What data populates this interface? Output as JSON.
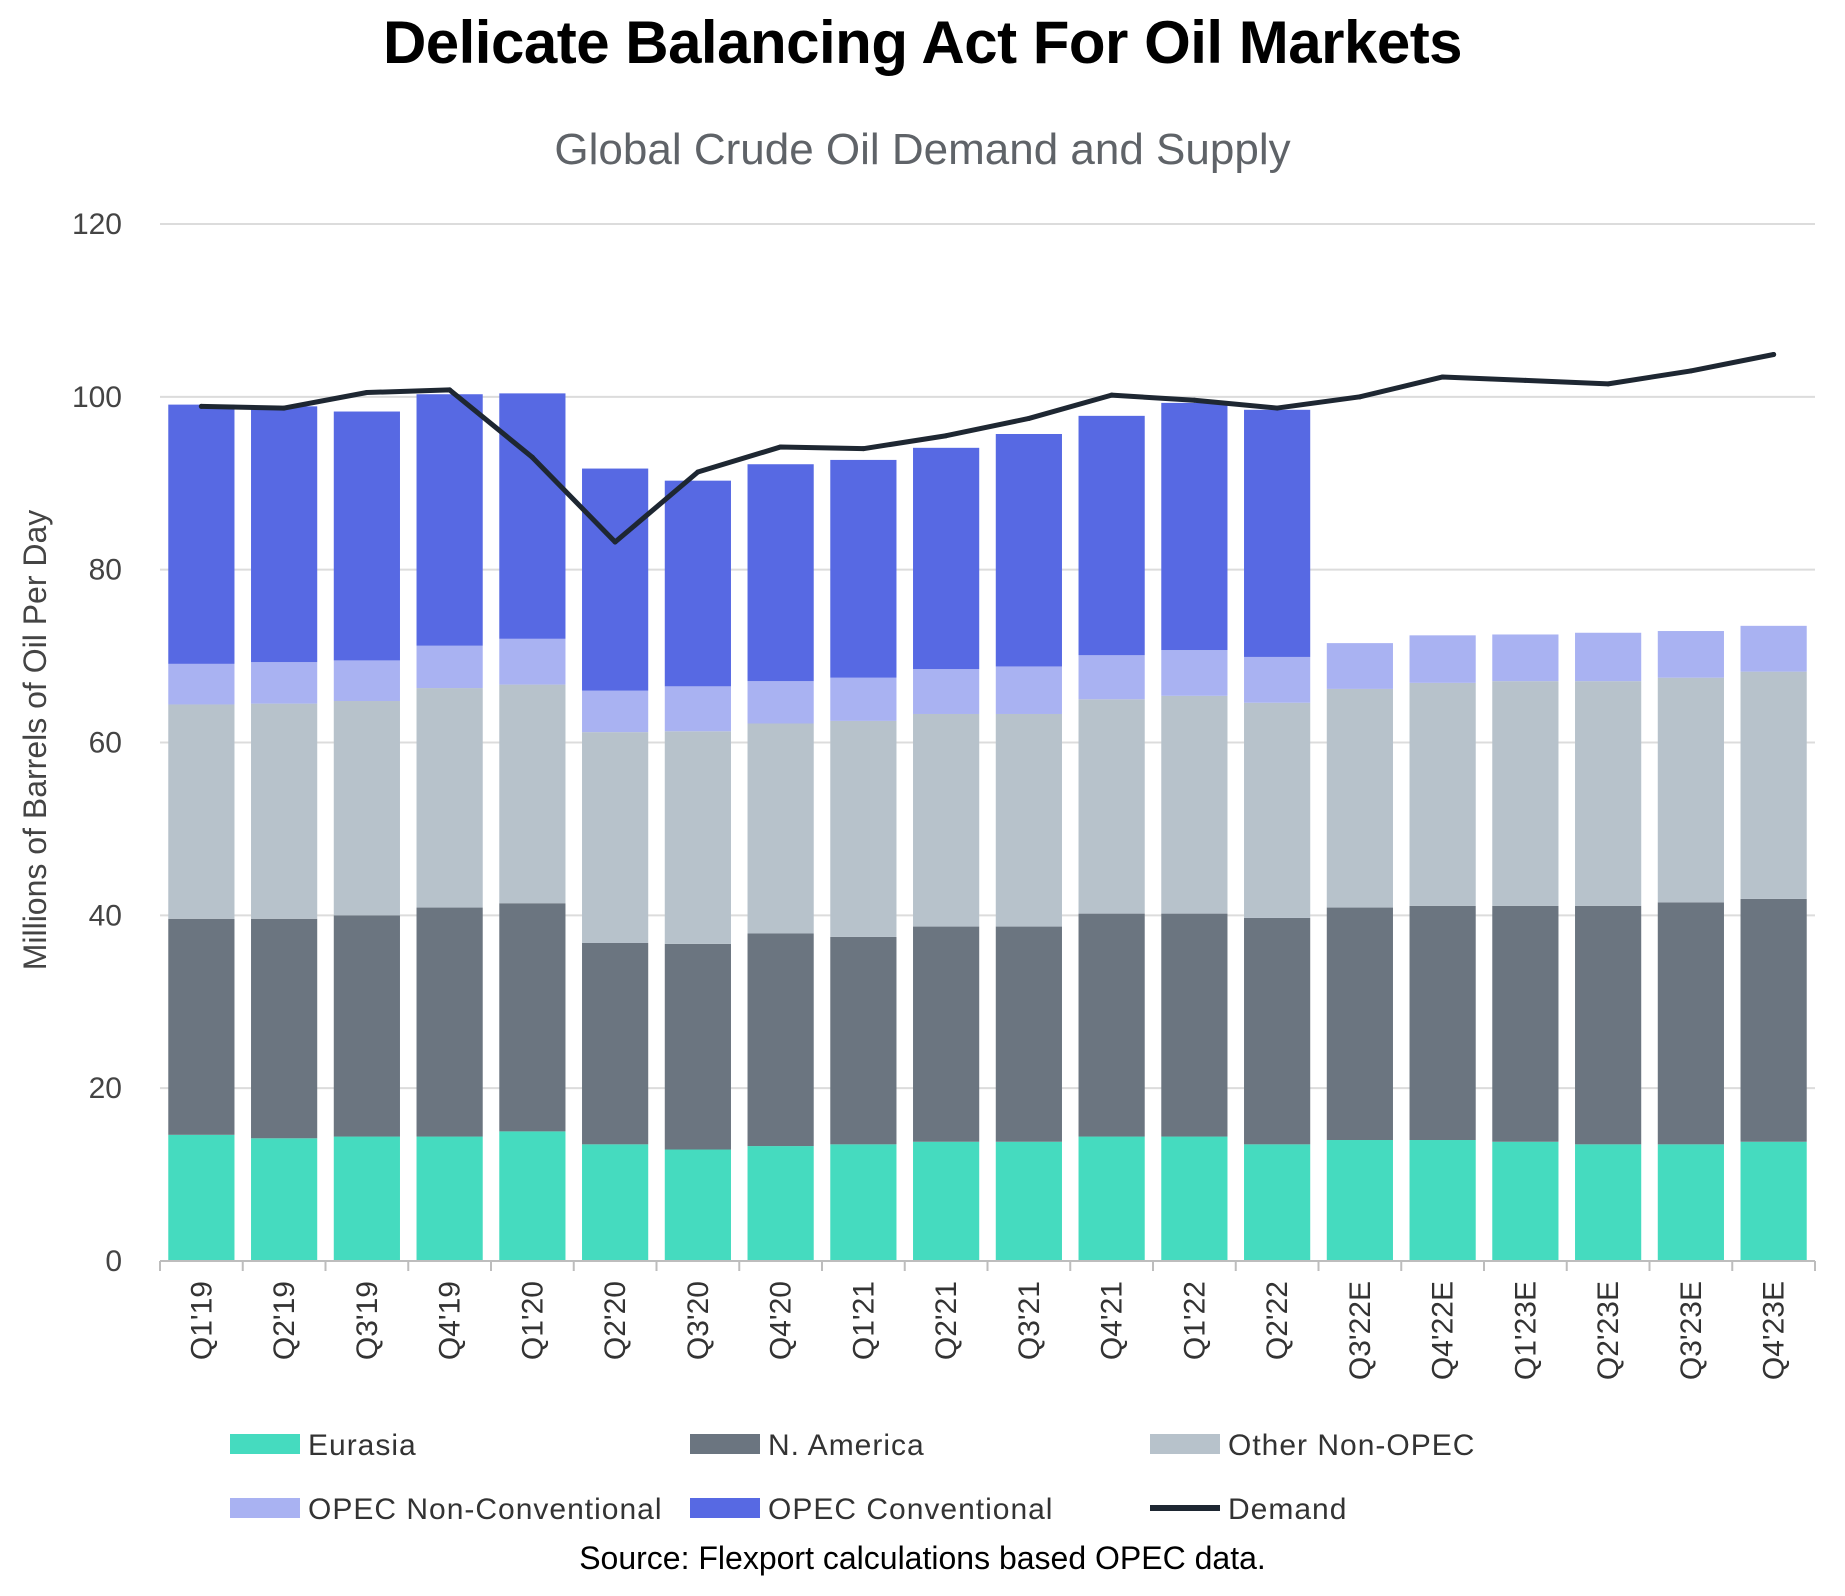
{
  "chart_data": {
    "type": "bar",
    "stacked": true,
    "title": "Delicate Balancing Act For Oil Markets",
    "subtitle": "Global Crude Oil Demand and Supply",
    "ylabel": "Millions of Barrels of Oil Per Day",
    "xlabel": "",
    "ylim": [
      0,
      120
    ],
    "yticks": [
      0,
      20,
      40,
      60,
      80,
      100,
      120
    ],
    "grid": true,
    "legend_position": "bottom",
    "categories": [
      "Q1'19",
      "Q2'19",
      "Q3'19",
      "Q4'19",
      "Q1'20",
      "Q2'20",
      "Q3'20",
      "Q4'20",
      "Q1'21",
      "Q2'21",
      "Q3'21",
      "Q4'21",
      "Q1'22",
      "Q2'22",
      "Q3'22E",
      "Q4'22E",
      "Q1'23E",
      "Q2'23E",
      "Q3'23E",
      "Q4'23E"
    ],
    "series": [
      {
        "name": "Eurasia",
        "color": "#45dbbf",
        "kind": "bar",
        "values": [
          14.6,
          14.2,
          14.4,
          14.4,
          15.0,
          13.5,
          12.9,
          13.3,
          13.5,
          13.8,
          13.8,
          14.4,
          14.4,
          13.5,
          14.0,
          14.0,
          13.8,
          13.5,
          13.5,
          13.8
        ]
      },
      {
        "name": "N. America",
        "color": "#6b7580",
        "kind": "bar",
        "values": [
          25.0,
          25.4,
          25.6,
          26.5,
          26.4,
          23.3,
          23.8,
          24.6,
          24.0,
          24.9,
          24.9,
          25.8,
          25.8,
          26.2,
          26.9,
          27.1,
          27.3,
          27.6,
          28.0,
          28.1
        ]
      },
      {
        "name": "Other Non-OPEC",
        "color": "#b7c2cb",
        "kind": "bar",
        "values": [
          24.8,
          24.9,
          24.8,
          25.4,
          25.3,
          24.4,
          24.6,
          24.3,
          25.0,
          24.6,
          24.6,
          24.8,
          25.2,
          24.9,
          25.3,
          25.8,
          26.0,
          26.0,
          26.0,
          26.3
        ]
      },
      {
        "name": "OPEC Non-Conventional",
        "color": "#a9b2f2",
        "kind": "bar",
        "values": [
          4.7,
          4.8,
          4.7,
          4.9,
          5.3,
          4.8,
          5.2,
          4.9,
          5.0,
          5.2,
          5.5,
          5.1,
          5.3,
          5.3,
          5.3,
          5.5,
          5.4,
          5.6,
          5.4,
          5.3
        ]
      },
      {
        "name": "OPEC Conventional",
        "color": "#5769e3",
        "kind": "bar",
        "values": [
          30.0,
          29.6,
          28.8,
          29.1,
          28.4,
          25.7,
          23.8,
          25.1,
          25.2,
          25.6,
          26.9,
          27.7,
          28.6,
          28.6,
          0,
          0,
          0,
          0,
          0,
          0
        ]
      },
      {
        "name": "Demand",
        "color": "#1e2732",
        "kind": "line",
        "values": [
          98.9,
          98.7,
          100.5,
          100.8,
          93.0,
          83.2,
          91.3,
          94.2,
          94.0,
          95.5,
          97.5,
          100.2,
          99.6,
          98.7,
          100.0,
          102.3,
          101.9,
          101.5,
          103.0,
          104.9
        ]
      }
    ],
    "source": "Source: Flexport calculations based OPEC data."
  }
}
